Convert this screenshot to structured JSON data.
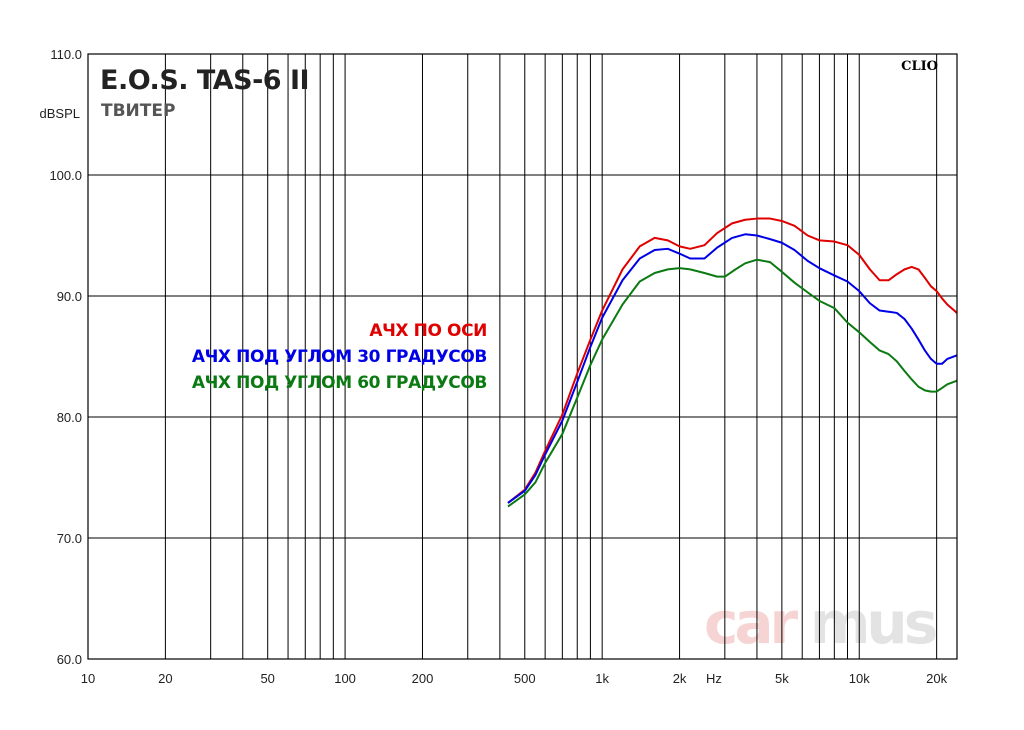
{
  "header": {
    "title": "E.O.S. TAS-6 II",
    "subtitle": "ТВИТЕР",
    "brand": "CLIO"
  },
  "watermark": {
    "text_a": "car",
    "text_b": "mus",
    "color_a": "#f6d4d4",
    "color_b": "#e3e3e3"
  },
  "chart_data": {
    "type": "line",
    "title": "E.O.S. TAS-6 II",
    "subtitle": "ТВИТЕР",
    "xscale": "log",
    "xlim": [
      10,
      24000
    ],
    "ylim": [
      60,
      110
    ],
    "ylabel": "dBSPL",
    "xunit_label": "Hz",
    "grid": true,
    "legend_position": "center-left",
    "y_ticks": [
      {
        "value": 60,
        "label": "60.0"
      },
      {
        "value": 70,
        "label": "70.0"
      },
      {
        "value": 80,
        "label": "80.0"
      },
      {
        "value": 90,
        "label": "90.0"
      },
      {
        "value": 100,
        "label": "100.0"
      },
      {
        "value": 110,
        "label": "110.0"
      }
    ],
    "x_ticks": [
      {
        "value": 10,
        "label": "10"
      },
      {
        "value": 20,
        "label": "20"
      },
      {
        "value": 50,
        "label": "50"
      },
      {
        "value": 100,
        "label": "100"
      },
      {
        "value": 200,
        "label": "200"
      },
      {
        "value": 500,
        "label": "500"
      },
      {
        "value": 1000,
        "label": "1k"
      },
      {
        "value": 2000,
        "label": "2k"
      },
      {
        "value": 5000,
        "label": "5k"
      },
      {
        "value": 10000,
        "label": "10k"
      },
      {
        "value": 20000,
        "label": "20k"
      }
    ],
    "series": [
      {
        "name": "АЧХ ПО ОСИ",
        "color": "#e00000",
        "points": [
          [
            430,
            72.9
          ],
          [
            500,
            74.0
          ],
          [
            550,
            75.4
          ],
          [
            600,
            77.2
          ],
          [
            700,
            80.2
          ],
          [
            800,
            83.6
          ],
          [
            900,
            86.4
          ],
          [
            1000,
            88.8
          ],
          [
            1200,
            92.2
          ],
          [
            1400,
            94.1
          ],
          [
            1600,
            94.8
          ],
          [
            1800,
            94.6
          ],
          [
            2000,
            94.1
          ],
          [
            2200,
            93.9
          ],
          [
            2500,
            94.2
          ],
          [
            2800,
            95.2
          ],
          [
            3200,
            96.0
          ],
          [
            3600,
            96.3
          ],
          [
            4000,
            96.4
          ],
          [
            4500,
            96.4
          ],
          [
            5000,
            96.2
          ],
          [
            5600,
            95.8
          ],
          [
            6300,
            95.0
          ],
          [
            7000,
            94.6
          ],
          [
            8000,
            94.5
          ],
          [
            9000,
            94.2
          ],
          [
            10000,
            93.4
          ],
          [
            11000,
            92.2
          ],
          [
            12000,
            91.3
          ],
          [
            13000,
            91.3
          ],
          [
            14000,
            91.8
          ],
          [
            15000,
            92.2
          ],
          [
            16000,
            92.4
          ],
          [
            17000,
            92.2
          ],
          [
            18000,
            91.5
          ],
          [
            19000,
            90.8
          ],
          [
            20000,
            90.4
          ],
          [
            21000,
            89.8
          ],
          [
            22000,
            89.3
          ],
          [
            24000,
            88.6
          ]
        ]
      },
      {
        "name": "АЧХ ПОД УГЛОМ 30 ГРАДУСОВ",
        "color": "#0000e6",
        "points": [
          [
            430,
            72.9
          ],
          [
            500,
            73.9
          ],
          [
            550,
            75.2
          ],
          [
            600,
            76.9
          ],
          [
            700,
            79.7
          ],
          [
            800,
            82.9
          ],
          [
            900,
            85.8
          ],
          [
            1000,
            88.2
          ],
          [
            1200,
            91.3
          ],
          [
            1400,
            93.1
          ],
          [
            1600,
            93.8
          ],
          [
            1800,
            93.9
          ],
          [
            2000,
            93.5
          ],
          [
            2200,
            93.1
          ],
          [
            2500,
            93.1
          ],
          [
            2800,
            94.0
          ],
          [
            3200,
            94.8
          ],
          [
            3600,
            95.1
          ],
          [
            4000,
            95.0
          ],
          [
            4500,
            94.7
          ],
          [
            5000,
            94.4
          ],
          [
            5600,
            93.8
          ],
          [
            6300,
            92.9
          ],
          [
            7000,
            92.3
          ],
          [
            8000,
            91.7
          ],
          [
            9000,
            91.2
          ],
          [
            10000,
            90.4
          ],
          [
            11000,
            89.4
          ],
          [
            12000,
            88.8
          ],
          [
            13000,
            88.7
          ],
          [
            14000,
            88.6
          ],
          [
            15000,
            88.1
          ],
          [
            16000,
            87.3
          ],
          [
            17000,
            86.4
          ],
          [
            18000,
            85.5
          ],
          [
            19000,
            84.8
          ],
          [
            20000,
            84.4
          ],
          [
            21000,
            84.4
          ],
          [
            22000,
            84.8
          ],
          [
            24000,
            85.1
          ]
        ]
      },
      {
        "name": "АЧХ ПОД УГЛОМ 60 ГРАДУСОВ",
        "color": "#0c7a12",
        "points": [
          [
            430,
            72.6
          ],
          [
            500,
            73.6
          ],
          [
            550,
            74.6
          ],
          [
            600,
            76.2
          ],
          [
            700,
            78.6
          ],
          [
            800,
            81.6
          ],
          [
            900,
            84.3
          ],
          [
            1000,
            86.4
          ],
          [
            1200,
            89.3
          ],
          [
            1400,
            91.2
          ],
          [
            1600,
            91.9
          ],
          [
            1800,
            92.2
          ],
          [
            2000,
            92.3
          ],
          [
            2200,
            92.2
          ],
          [
            2500,
            91.9
          ],
          [
            2800,
            91.6
          ],
          [
            3000,
            91.6
          ],
          [
            3300,
            92.2
          ],
          [
            3600,
            92.7
          ],
          [
            4000,
            93.0
          ],
          [
            4500,
            92.8
          ],
          [
            5000,
            92.0
          ],
          [
            5600,
            91.1
          ],
          [
            6300,
            90.3
          ],
          [
            7000,
            89.6
          ],
          [
            8000,
            89.0
          ],
          [
            9000,
            87.8
          ],
          [
            10000,
            87.0
          ],
          [
            11000,
            86.2
          ],
          [
            12000,
            85.5
          ],
          [
            13000,
            85.2
          ],
          [
            14000,
            84.6
          ],
          [
            15000,
            83.8
          ],
          [
            16000,
            83.1
          ],
          [
            17000,
            82.5
          ],
          [
            18000,
            82.2
          ],
          [
            19000,
            82.1
          ],
          [
            20000,
            82.1
          ],
          [
            21000,
            82.4
          ],
          [
            22000,
            82.7
          ],
          [
            24000,
            83.0
          ]
        ]
      }
    ]
  }
}
